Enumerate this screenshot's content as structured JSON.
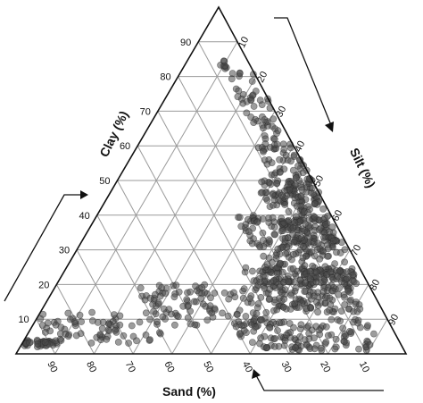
{
  "chart_data": {
    "type": "scatter",
    "title": "",
    "axes": {
      "clay": {
        "label": "Clay (%)",
        "ticks": [
          10,
          20,
          30,
          40,
          50,
          60,
          70,
          80,
          90
        ]
      },
      "silt": {
        "label": "Silt (%)",
        "ticks": [
          10,
          20,
          30,
          40,
          50,
          60,
          70,
          80,
          90
        ]
      },
      "sand": {
        "label": "Sand (%)",
        "ticks": [
          90,
          80,
          70,
          60,
          50,
          40,
          30,
          20,
          10
        ]
      }
    },
    "grid": true,
    "legend": "none",
    "point_color": "#4a4a4a",
    "clusters": [
      {
        "clay": [
          2,
          4
        ],
        "sand": [
          88,
          98
        ],
        "n": 40
      },
      {
        "clay": [
          3,
          12
        ],
        "sand": [
          60,
          90
        ],
        "n": 70
      },
      {
        "clay": [
          8,
          20
        ],
        "sand": [
          30,
          60
        ],
        "n": 110
      },
      {
        "clay": [
          12,
          25
        ],
        "sand": [
          5,
          30
        ],
        "n": 200
      },
      {
        "clay": [
          20,
          40
        ],
        "sand": [
          2,
          25
        ],
        "n": 230
      },
      {
        "clay": [
          30,
          50
        ],
        "sand": [
          1,
          15
        ],
        "n": 160
      },
      {
        "clay": [
          45,
          60
        ],
        "sand": [
          0,
          10
        ],
        "n": 70
      },
      {
        "clay": [
          60,
          85
        ],
        "sand": [
          0,
          8
        ],
        "n": 60
      },
      {
        "clay": [
          1,
          10
        ],
        "sand": [
          5,
          40
        ],
        "n": 120
      }
    ]
  }
}
